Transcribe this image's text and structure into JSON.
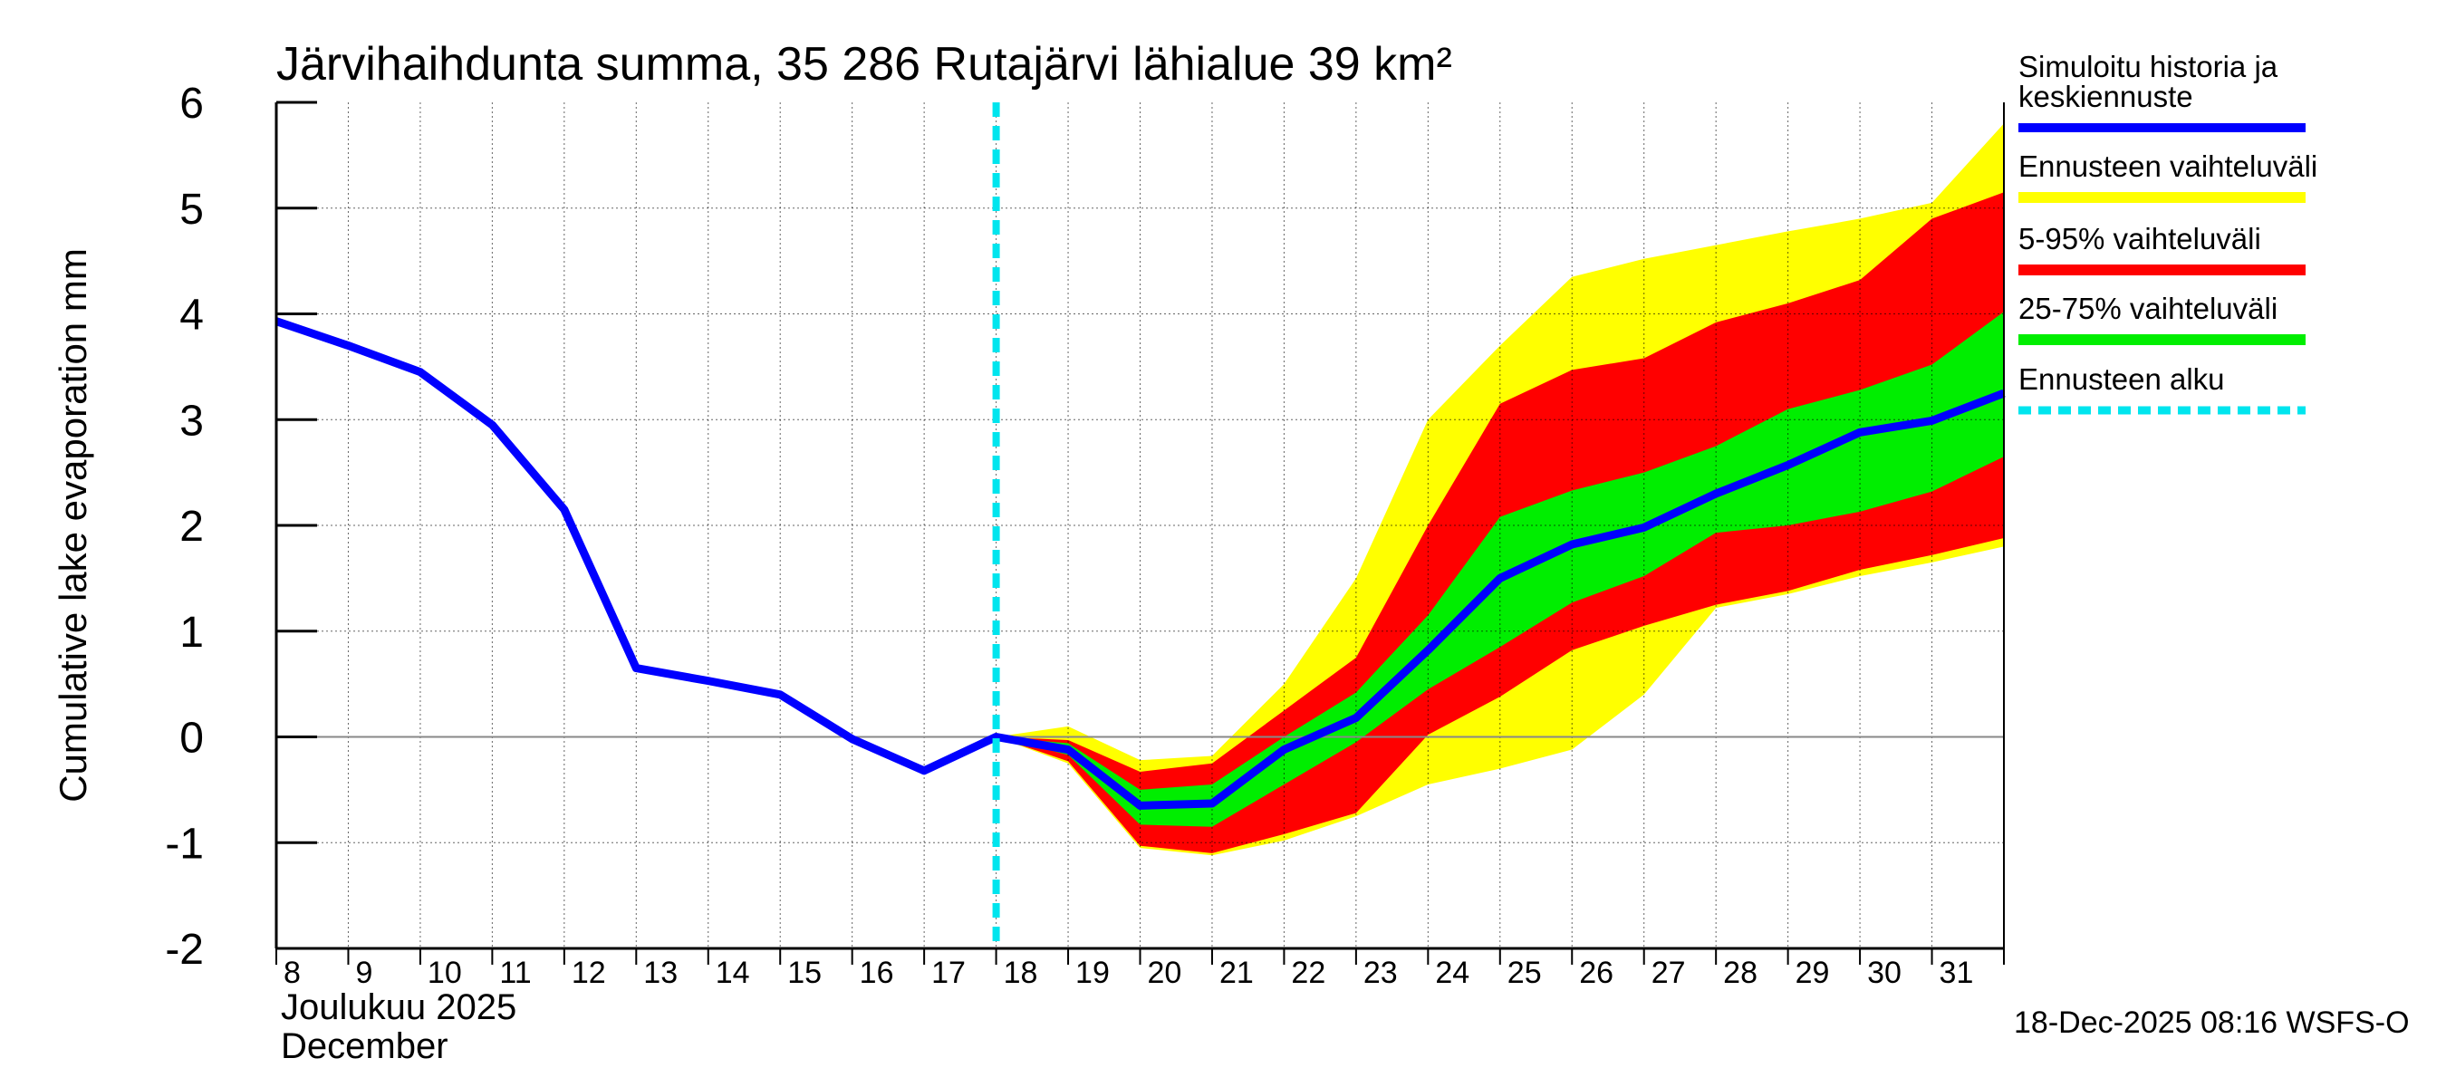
{
  "chart_data": {
    "type": "area",
    "title": "Järvihaihdunta summa, 35 286 Rutajärvi lähialue 39 km²",
    "ylabel": "Cumulative lake evaporation   mm",
    "xlabel_line1": "Joulukuu  2025",
    "xlabel_line2": "December",
    "ylim": [
      -2,
      6
    ],
    "yticks": [
      "-2",
      "-1",
      "0",
      "1",
      "2",
      "3",
      "4",
      "5",
      "6"
    ],
    "x_range": [
      8,
      32
    ],
    "x": [
      8,
      9,
      10,
      11,
      12,
      13,
      14,
      15,
      16,
      17,
      18,
      19,
      20,
      21,
      22,
      23,
      24,
      25,
      26,
      27,
      28,
      29,
      30,
      31,
      32
    ],
    "xtick_labels": [
      "8",
      "9",
      "10",
      "11",
      "12",
      "13",
      "14",
      "15",
      "16",
      "17",
      "18",
      "19",
      "20",
      "21",
      "22",
      "23",
      "24",
      "25",
      "26",
      "27",
      "28",
      "29",
      "30",
      "31"
    ],
    "forecast_start": 18,
    "series": [
      {
        "name": "Simuloitu historia ja keskiennuste",
        "type": "line",
        "color": "#0000ff",
        "x": [
          8,
          9,
          10,
          11,
          12,
          13,
          14,
          15,
          16,
          17,
          18,
          19,
          20,
          21,
          22,
          23,
          24,
          25,
          26,
          27,
          28,
          29,
          30,
          31,
          32
        ],
        "values": [
          3.93,
          3.7,
          3.45,
          2.95,
          2.15,
          0.65,
          0.53,
          0.4,
          -0.02,
          -0.32,
          0.0,
          -0.12,
          -0.65,
          -0.63,
          -0.12,
          0.18,
          0.82,
          1.5,
          1.82,
          1.98,
          2.3,
          2.57,
          2.88,
          2.99,
          3.25
        ]
      },
      {
        "name": "Ennusteen vaihteluväli",
        "type": "band",
        "color": "#ffff00",
        "x": [
          18,
          19,
          20,
          21,
          22,
          23,
          24,
          25,
          26,
          27,
          28,
          29,
          30,
          31,
          32
        ],
        "upper": [
          0.0,
          0.1,
          -0.22,
          -0.18,
          0.5,
          1.5,
          3.0,
          3.7,
          4.35,
          4.52,
          4.65,
          4.78,
          4.9,
          5.05,
          5.8
        ],
        "lower": [
          0.0,
          -0.25,
          -1.05,
          -1.12,
          -0.98,
          -0.75,
          -0.45,
          -0.3,
          -0.12,
          0.4,
          1.22,
          1.35,
          1.52,
          1.65,
          1.8
        ]
      },
      {
        "name": "5-95% vaihteluväli",
        "type": "band",
        "color": "#ff0000",
        "x": [
          18,
          19,
          20,
          21,
          22,
          23,
          24,
          25,
          26,
          27,
          28,
          29,
          30,
          31,
          32
        ],
        "upper": [
          0.0,
          -0.03,
          -0.33,
          -0.25,
          0.25,
          0.75,
          2.0,
          3.15,
          3.47,
          3.58,
          3.92,
          4.1,
          4.32,
          4.9,
          5.15
        ],
        "lower": [
          0.0,
          -0.23,
          -1.03,
          -1.1,
          -0.92,
          -0.72,
          0.02,
          0.38,
          0.82,
          1.05,
          1.25,
          1.38,
          1.58,
          1.72,
          1.88
        ]
      },
      {
        "name": "25-75% vaihteluväli",
        "type": "band",
        "color": "#00ee00",
        "x": [
          18,
          19,
          20,
          21,
          22,
          23,
          24,
          25,
          26,
          27,
          28,
          29,
          30,
          31,
          32
        ],
        "upper": [
          0.0,
          -0.06,
          -0.5,
          -0.45,
          0.0,
          0.42,
          1.15,
          2.08,
          2.33,
          2.5,
          2.75,
          3.1,
          3.28,
          3.52,
          4.02
        ],
        "lower": [
          0.0,
          -0.17,
          -0.83,
          -0.85,
          -0.45,
          -0.05,
          0.45,
          0.85,
          1.27,
          1.52,
          1.93,
          2.0,
          2.13,
          2.32,
          2.65
        ]
      },
      {
        "name": "Ennusteen alku",
        "type": "vline",
        "color": "#00e5ee",
        "x": 18
      }
    ],
    "legend_placement": "right",
    "grid": true,
    "footer": "18-Dec-2025 08:16 WSFS-O"
  }
}
